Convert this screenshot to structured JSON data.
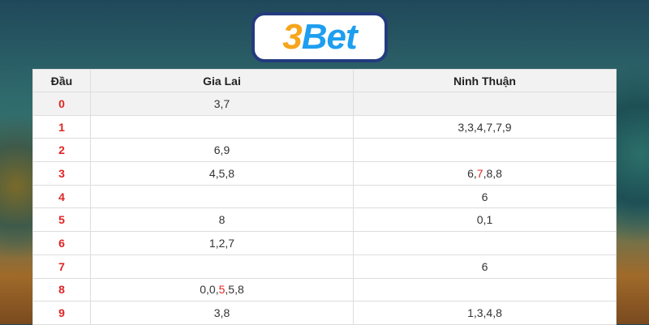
{
  "logo": {
    "text_number": "3",
    "text_word": "Bet"
  },
  "table": {
    "headers": [
      "Đầu",
      "Gia Lai",
      "Ninh Thuận"
    ],
    "rows": [
      {
        "dau": "0",
        "gia_lai": [
          {
            "t": "3,7"
          }
        ],
        "ninh_thuan": []
      },
      {
        "dau": "1",
        "gia_lai": [],
        "ninh_thuan": [
          {
            "t": "3,3,4,7,7,9"
          }
        ]
      },
      {
        "dau": "2",
        "gia_lai": [
          {
            "t": "6,9"
          }
        ],
        "ninh_thuan": []
      },
      {
        "dau": "3",
        "gia_lai": [
          {
            "t": "4,5,8"
          }
        ],
        "ninh_thuan": [
          {
            "t": "6,"
          },
          {
            "t": "7",
            "hl": true
          },
          {
            "t": ",8,8"
          }
        ]
      },
      {
        "dau": "4",
        "gia_lai": [],
        "ninh_thuan": [
          {
            "t": "6"
          }
        ]
      },
      {
        "dau": "5",
        "gia_lai": [
          {
            "t": "8"
          }
        ],
        "ninh_thuan": [
          {
            "t": "0,1"
          }
        ]
      },
      {
        "dau": "6",
        "gia_lai": [
          {
            "t": "1,2,7"
          }
        ],
        "ninh_thuan": []
      },
      {
        "dau": "7",
        "gia_lai": [],
        "ninh_thuan": [
          {
            "t": "6"
          }
        ]
      },
      {
        "dau": "8",
        "gia_lai": [
          {
            "t": "0,0,"
          },
          {
            "t": "5",
            "hl": true
          },
          {
            "t": ",5,8"
          }
        ],
        "ninh_thuan": []
      },
      {
        "dau": "9",
        "gia_lai": [
          {
            "t": "3,8"
          }
        ],
        "ninh_thuan": [
          {
            "t": "1,3,4,8"
          }
        ]
      }
    ],
    "highlight_color": "#e02424"
  }
}
